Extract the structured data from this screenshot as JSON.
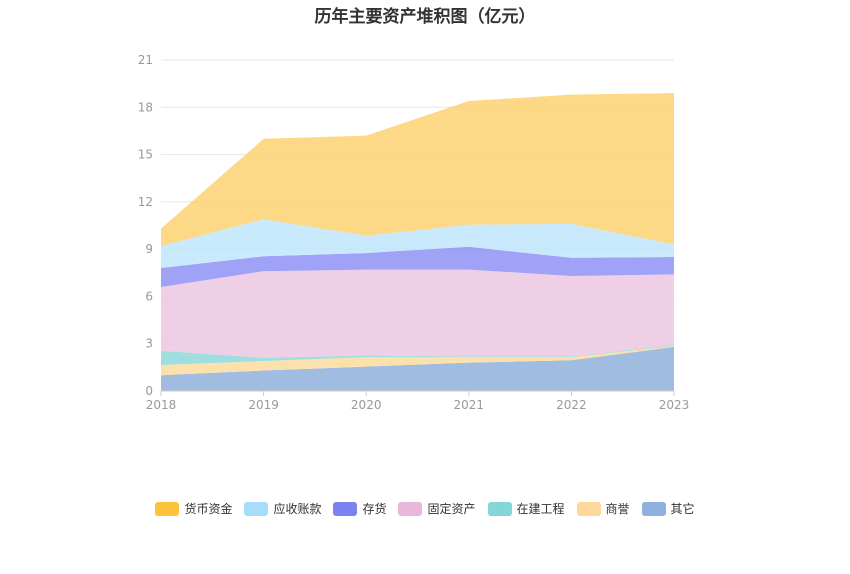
{
  "title": "历年主要资产堆积图（亿元）",
  "chart_data": {
    "type": "area",
    "stacked": true,
    "title": "历年主要资产堆积图（亿元）",
    "x": [
      "2018",
      "2019",
      "2020",
      "2021",
      "2022",
      "2023"
    ],
    "ylim": [
      0,
      21
    ],
    "yticks": [
      0,
      3,
      6,
      9,
      12,
      15,
      18,
      21
    ],
    "grid": true,
    "legend_position": "bottom",
    "series": [
      {
        "name": "其它",
        "color": "#8fb0dc",
        "values": [
          1.0,
          1.3,
          1.55,
          1.8,
          1.95,
          2.8
        ]
      },
      {
        "name": "商誉",
        "color": "#fddc9e",
        "values": [
          0.65,
          0.6,
          0.6,
          0.35,
          0.2,
          0.05
        ]
      },
      {
        "name": "在建工程",
        "color": "#8dd8dc",
        "values": [
          0.9,
          0.2,
          0.1,
          0.05,
          0.05,
          0.05
        ]
      },
      {
        "name": "固定资产",
        "color": "#ecc7e2",
        "values": [
          4.05,
          5.5,
          5.45,
          5.5,
          5.1,
          4.5
        ]
      },
      {
        "name": "存货",
        "color": "#8e92f5",
        "values": [
          1.2,
          0.95,
          1.05,
          1.45,
          1.15,
          1.1
        ]
      },
      {
        "name": "应收账款",
        "color": "#bee6fb",
        "values": [
          1.4,
          2.35,
          1.1,
          1.4,
          2.15,
          0.8
        ]
      },
      {
        "name": "货币资金",
        "color": "#fdd172",
        "values": [
          1.1,
          5.1,
          6.35,
          7.85,
          8.2,
          9.6
        ]
      }
    ]
  },
  "legend": [
    {
      "label": "货币资金",
      "color": "#fdc33c"
    },
    {
      "label": "应收账款",
      "color": "#a6def9"
    },
    {
      "label": "存货",
      "color": "#7c82f0"
    },
    {
      "label": "固定资产",
      "color": "#e8b8dc"
    },
    {
      "label": "在建工程",
      "color": "#84d6d8"
    },
    {
      "label": "商誉",
      "color": "#fdd89a"
    },
    {
      "label": "其它",
      "color": "#8fb0dc"
    }
  ]
}
